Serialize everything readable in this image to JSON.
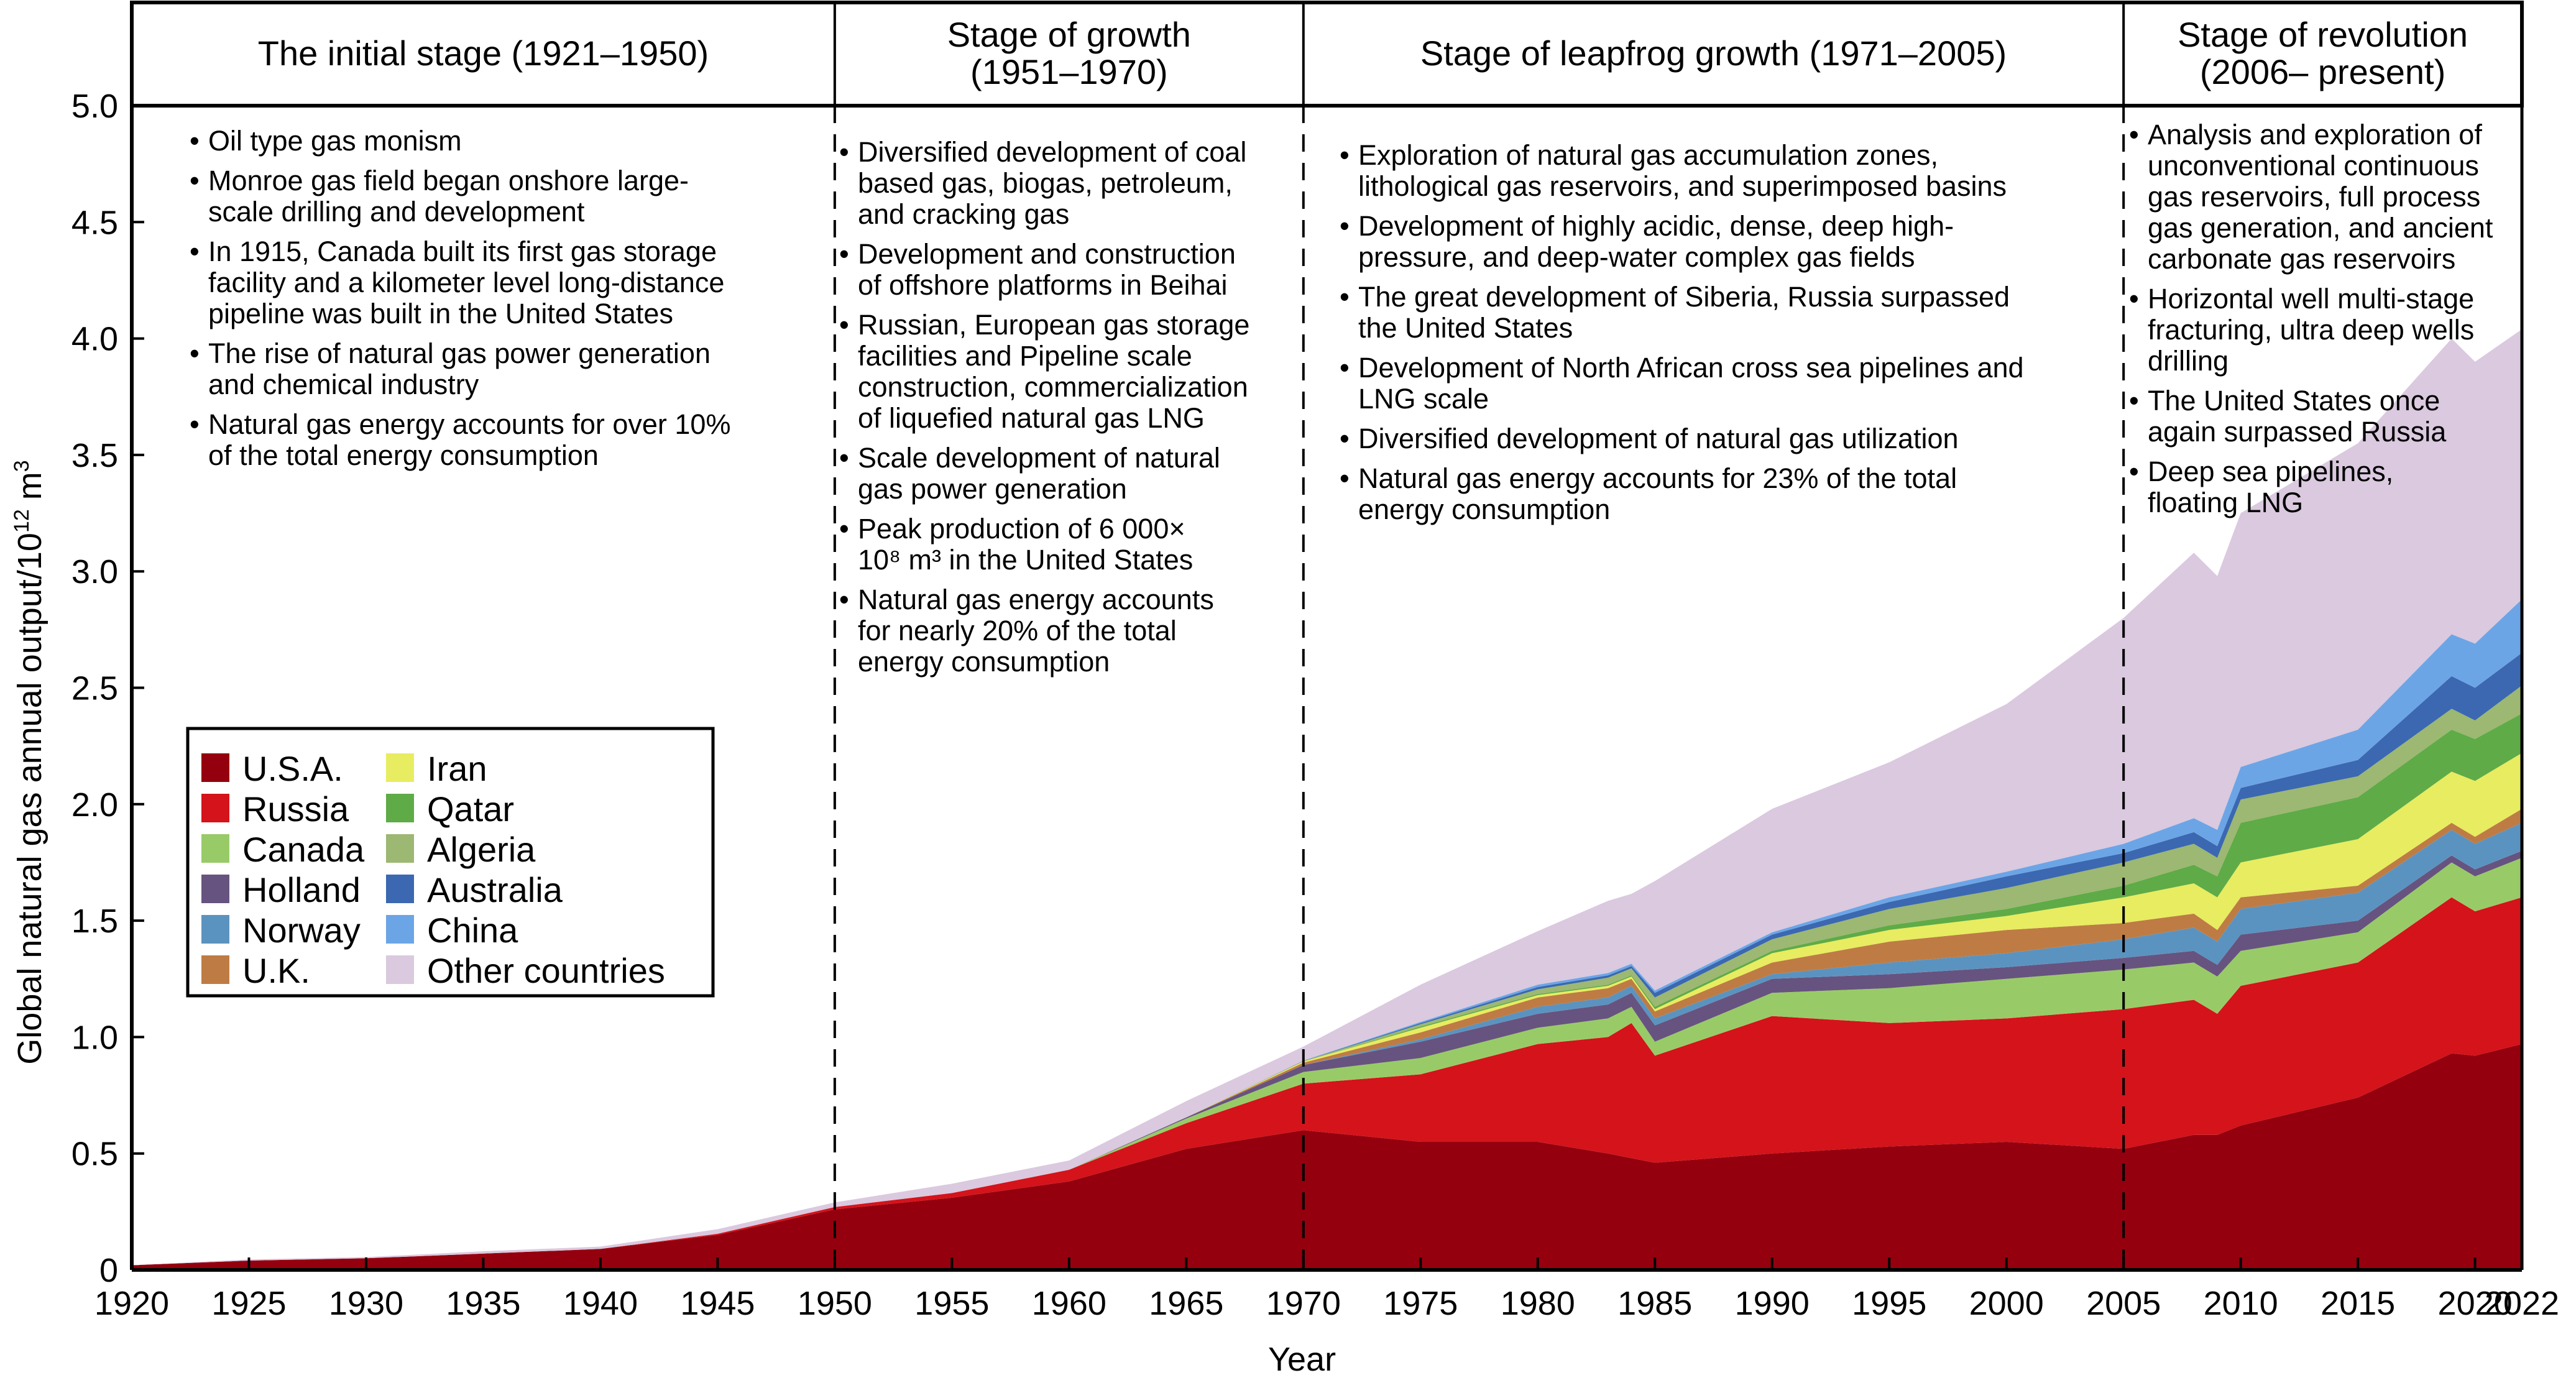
{
  "chart_data": {
    "type": "area",
    "stacked": true,
    "title": "",
    "xlabel": "Year",
    "ylabel": "Global natural gas annual output/10",
    "ylabel_sup": "12",
    "ylabel_unit": " m",
    "ylabel_unit_sup": "3",
    "xlim": [
      1920,
      2022
    ],
    "ylim": [
      0,
      5.0
    ],
    "grid": false,
    "legend_position": "left-middle",
    "x_ticks": [
      "1920",
      "1925",
      "1930",
      "1935",
      "1940",
      "1945",
      "1950",
      "1955",
      "1960",
      "1965",
      "1970",
      "1975",
      "1980",
      "1985",
      "1990",
      "1995",
      "2000",
      "2005",
      "2010",
      "2015",
      "2020",
      "2022"
    ],
    "y_ticks": [
      "0",
      "0.5",
      "1.0",
      "1.5",
      "2.0",
      "2.5",
      "3.0",
      "3.5",
      "4.0",
      "4.5",
      "5.0"
    ],
    "x": [
      1920,
      1925,
      1930,
      1935,
      1940,
      1945,
      1950,
      1955,
      1960,
      1965,
      1970,
      1975,
      1980,
      1983,
      1984,
      1985,
      1990,
      1995,
      2000,
      2005,
      2008,
      2009,
      2010,
      2015,
      2019,
      2020,
      2022
    ],
    "series": [
      {
        "name": "U.S.A.",
        "color": "#95000e",
        "values": [
          0.02,
          0.04,
          0.05,
          0.07,
          0.09,
          0.15,
          0.26,
          0.31,
          0.38,
          0.52,
          0.6,
          0.55,
          0.55,
          0.5,
          0.48,
          0.46,
          0.5,
          0.53,
          0.55,
          0.52,
          0.58,
          0.58,
          0.62,
          0.74,
          0.93,
          0.92,
          0.97
        ]
      },
      {
        "name": "Russia",
        "color": "#d4131b",
        "values": [
          0,
          0,
          0,
          0,
          0,
          0.005,
          0.01,
          0.02,
          0.05,
          0.11,
          0.2,
          0.29,
          0.42,
          0.5,
          0.58,
          0.46,
          0.59,
          0.53,
          0.53,
          0.6,
          0.58,
          0.52,
          0.6,
          0.58,
          0.67,
          0.62,
          0.63
        ]
      },
      {
        "name": "Canada",
        "color": "#98cb67",
        "values": [
          0,
          0,
          0,
          0,
          0,
          0,
          0,
          0,
          0,
          0.02,
          0.05,
          0.07,
          0.07,
          0.08,
          0.07,
          0.06,
          0.1,
          0.15,
          0.17,
          0.17,
          0.16,
          0.16,
          0.15,
          0.13,
          0.15,
          0.15,
          0.17
        ]
      },
      {
        "name": "Holland",
        "color": "#67537f",
        "values": [
          0,
          0,
          0,
          0,
          0,
          0,
          0,
          0,
          0,
          0.005,
          0.03,
          0.07,
          0.06,
          0.06,
          0.06,
          0.07,
          0.06,
          0.06,
          0.05,
          0.05,
          0.05,
          0.05,
          0.07,
          0.05,
          0.03,
          0.03,
          0.03
        ]
      },
      {
        "name": "Norway",
        "color": "#5b93c0",
        "values": [
          0,
          0,
          0,
          0,
          0,
          0,
          0,
          0,
          0,
          0,
          0,
          0.01,
          0.03,
          0.03,
          0.03,
          0.03,
          0.02,
          0.05,
          0.06,
          0.08,
          0.1,
          0.1,
          0.11,
          0.12,
          0.11,
          0.11,
          0.12
        ]
      },
      {
        "name": "U.K.",
        "color": "#be7c44",
        "values": [
          0,
          0,
          0,
          0,
          0,
          0,
          0,
          0,
          0,
          0,
          0.01,
          0.03,
          0.04,
          0.04,
          0.03,
          0.03,
          0.05,
          0.09,
          0.1,
          0.07,
          0.06,
          0.05,
          0.05,
          0.03,
          0.03,
          0.03,
          0.06
        ]
      },
      {
        "name": "Iran",
        "color": "#e8ec60",
        "values": [
          0,
          0,
          0,
          0,
          0,
          0,
          0,
          0,
          0,
          0,
          0.005,
          0.02,
          0.01,
          0.01,
          0.01,
          0.01,
          0.04,
          0.05,
          0.06,
          0.11,
          0.13,
          0.14,
          0.15,
          0.2,
          0.22,
          0.24,
          0.24
        ]
      },
      {
        "name": "Qatar",
        "color": "#5fab47",
        "values": [
          0,
          0,
          0,
          0,
          0,
          0,
          0,
          0,
          0,
          0,
          0,
          0.005,
          0.005,
          0.005,
          0.005,
          0.01,
          0.01,
          0.02,
          0.03,
          0.05,
          0.08,
          0.09,
          0.17,
          0.18,
          0.18,
          0.18,
          0.17
        ]
      },
      {
        "name": "Algeria",
        "color": "#9cb872",
        "values": [
          0,
          0,
          0,
          0,
          0,
          0,
          0,
          0,
          0,
          0,
          0.002,
          0.01,
          0.02,
          0.03,
          0.03,
          0.04,
          0.05,
          0.07,
          0.09,
          0.1,
          0.09,
          0.08,
          0.1,
          0.09,
          0.09,
          0.08,
          0.12
        ]
      },
      {
        "name": "Australia",
        "color": "#3b68b1",
        "values": [
          0,
          0,
          0,
          0,
          0,
          0,
          0,
          0,
          0,
          0,
          0.001,
          0.005,
          0.01,
          0.01,
          0.01,
          0.02,
          0.02,
          0.03,
          0.05,
          0.04,
          0.05,
          0.05,
          0.05,
          0.07,
          0.14,
          0.14,
          0.14
        ]
      },
      {
        "name": "China",
        "color": "#6ca5e6",
        "values": [
          0,
          0,
          0,
          0,
          0,
          0,
          0,
          0,
          0,
          0,
          0.001,
          0.005,
          0.01,
          0.01,
          0.01,
          0.01,
          0.01,
          0.02,
          0.02,
          0.04,
          0.06,
          0.07,
          0.09,
          0.13,
          0.18,
          0.19,
          0.23
        ]
      },
      {
        "name": "Other countries",
        "color": "#dac9df",
        "values": [
          0,
          0.005,
          0.005,
          0.01,
          0.01,
          0.02,
          0.02,
          0.04,
          0.04,
          0.07,
          0.06,
          0.16,
          0.23,
          0.31,
          0.3,
          0.47,
          0.53,
          0.58,
          0.72,
          0.97,
          1.14,
          1.09,
          1.09,
          1.23,
          1.27,
          1.21,
          1.16
        ]
      }
    ],
    "stages": [
      {
        "title_lines": [
          "The initial stage (1921–1950)"
        ],
        "from": 1920,
        "to": 1950
      },
      {
        "title_lines": [
          "Stage of growth",
          "(1951–1970)"
        ],
        "from": 1950,
        "to": 1970
      },
      {
        "title_lines": [
          "Stage of leapfrog growth (1971–2005)"
        ],
        "from": 1970,
        "to": 2005
      },
      {
        "title_lines": [
          "Stage of revolution",
          "(2006– present)"
        ],
        "from": 2005,
        "to": 2022
      }
    ],
    "stage_dividers": [
      1950,
      1970,
      2005
    ],
    "annotations": [
      {
        "stage": 0,
        "bullets": [
          [
            "Oil type gas monism"
          ],
          [
            "Monroe gas field began onshore large-",
            "scale drilling and development"
          ],
          [
            "In 1915, Canada built its first gas storage",
            "facility and a kilometer level long-distance",
            "pipeline was built in the United States"
          ],
          [
            "The rise of natural gas power generation",
            "and chemical industry"
          ],
          [
            "Natural gas energy accounts for over 10%",
            "of the total energy consumption"
          ]
        ]
      },
      {
        "stage": 1,
        "bullets": [
          [
            "Diversified development of coal",
            "based gas, biogas, petroleum,",
            "and cracking gas"
          ],
          [
            "Development and construction",
            "of offshore platforms in Beihai"
          ],
          [
            "Russian, European gas storage",
            "facilities and Pipeline scale",
            "construction, commercialization",
            "of liquefied natural gas LNG"
          ],
          [
            "Scale development of natural",
            "gas power generation"
          ],
          [
            "Peak production of 6 000×",
            "10⁸ m³ in the United States"
          ],
          [
            "Natural gas energy accounts",
            "for nearly 20% of the total",
            "energy consumption"
          ]
        ]
      },
      {
        "stage": 2,
        "bullets": [
          [
            "Exploration of natural gas accumulation zones,",
            "lithological gas reservoirs, and superimposed basins"
          ],
          [
            "Development of highly acidic, dense, deep high-",
            "pressure, and deep-water complex gas fields"
          ],
          [
            "The great development of Siberia, Russia surpassed",
            "the United States"
          ],
          [
            "Development of North African cross sea pipelines and",
            "LNG scale"
          ],
          [
            "Diversified development of natural gas utilization"
          ],
          [
            "Natural gas energy accounts for 23% of the total",
            "energy consumption"
          ]
        ]
      },
      {
        "stage": 3,
        "bullets": [
          [
            "Analysis and exploration of",
            "unconventional continuous",
            "gas reservoirs, full process",
            "gas generation, and ancient",
            "carbonate gas reservoirs"
          ],
          [
            "Horizontal well multi-stage",
            "fracturing, ultra deep wells",
            "drilling"
          ],
          [
            "The United States once",
            "again surpassed Russia"
          ],
          [
            "Deep sea pipelines,",
            "floating LNG"
          ]
        ]
      }
    ],
    "bullet_glyph": "•"
  }
}
